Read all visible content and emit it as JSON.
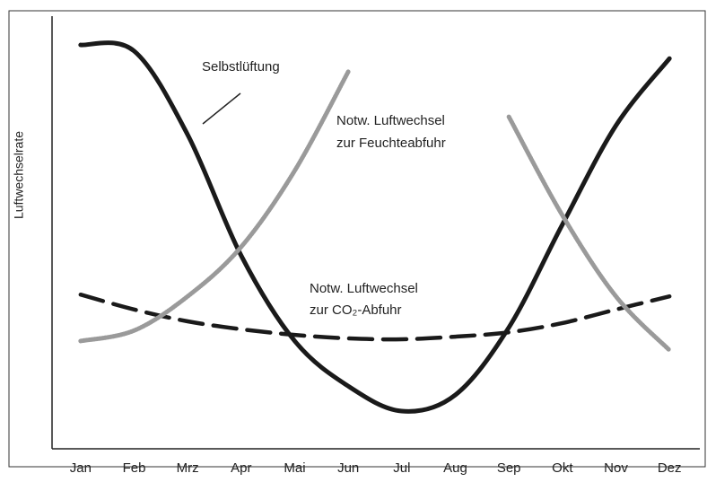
{
  "chart_data": {
    "type": "line",
    "y_label": "Luftwechselrate",
    "categories": [
      "Jan",
      "Feb",
      "Mrz",
      "Apr",
      "Mai",
      "Jun",
      "Jul",
      "Aug",
      "Sep",
      "Okt",
      "Nov",
      "Dez"
    ],
    "ylim": [
      0,
      100
    ],
    "series": [
      {
        "color": "#1a1a1a",
        "style": "solid",
        "values": [
          92.2,
          90.8,
          71.7,
          44.1,
          24.6,
          14.3,
          8.6,
          12.3,
          27.7,
          51.2,
          73.8,
          89.1
        ]
      },
      {
        "color": "#1a1a1a",
        "style": "dashed",
        "values": [
          35.2,
          31.8,
          29.1,
          27.3,
          26.0,
          25.2,
          25.0,
          25.6,
          26.6,
          28.7,
          31.8,
          34.8
        ]
      },
      {
        "color": "#9a9a9a",
        "style": "dotted",
        "values": [
          24.6,
          27.0,
          34.8,
          46.1,
          63.5,
          86.1,
          null,
          null,
          75.8,
          53.3,
          34.8,
          22.5
        ]
      }
    ],
    "annotations": [
      {
        "lines": [
          "Selbstlüftung"
        ]
      },
      {
        "lines": [
          "Notw. Luftwechsel",
          "zur Feuchteabfuhr"
        ]
      },
      {
        "lines": [
          "Notw. Luftwechsel",
          "zur CO₂-Abfuhr"
        ]
      }
    ]
  }
}
